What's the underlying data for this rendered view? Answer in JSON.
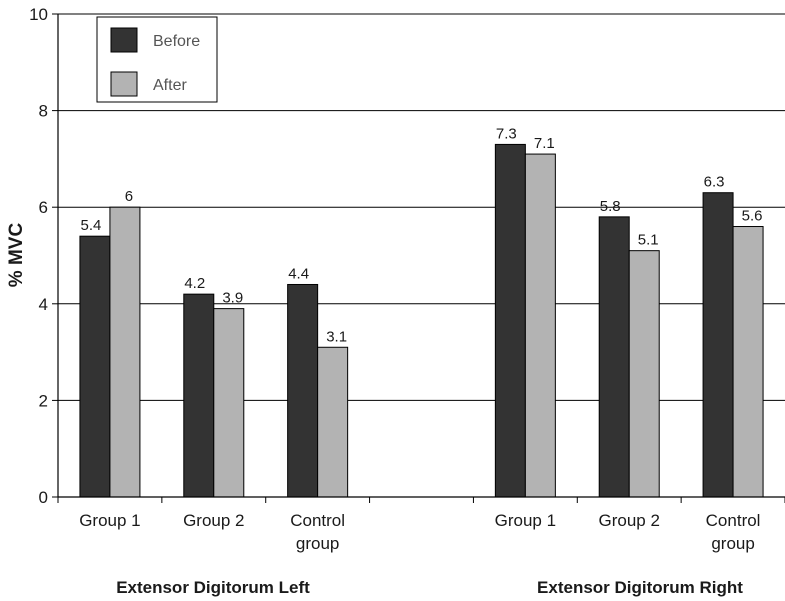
{
  "chart_data": {
    "type": "bar",
    "ylabel": "% MVC",
    "ylim": [
      0,
      10
    ],
    "yticks": [
      0,
      2,
      4,
      6,
      8,
      10
    ],
    "grid": true,
    "legend_position": "top-left",
    "categories": [
      "Group 1",
      "Group 2",
      "Control group",
      "",
      "Group 1",
      "Group 2",
      "Control group"
    ],
    "groups": [
      "Extensor Digitorum Left",
      "Extensor Digitorum Right"
    ],
    "series": [
      {
        "name": "Before",
        "color": "#333333",
        "values": [
          5.4,
          4.2,
          4.4,
          null,
          7.3,
          5.8,
          6.3
        ]
      },
      {
        "name": "After",
        "color": "#b3b3b3",
        "values": [
          6,
          3.9,
          3.1,
          null,
          7.1,
          5.1,
          5.6
        ]
      }
    ]
  }
}
